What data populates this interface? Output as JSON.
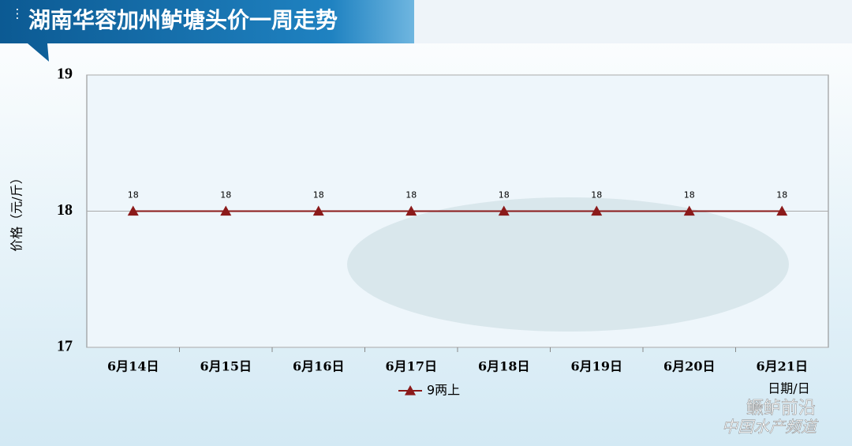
{
  "chart_data": {
    "type": "line",
    "title": "湖南华容加州鲈塘头价一周走势",
    "y_label": "价格（元/斤）",
    "x_label": "日期/日",
    "categories": [
      "6月14日",
      "6月15日",
      "6月16日",
      "6月17日",
      "6月18日",
      "6月19日",
      "6月20日",
      "6月21日"
    ],
    "series": [
      {
        "name": "9两上",
        "color": "#8b1a1a",
        "values": [
          18,
          18,
          18,
          18,
          18,
          18,
          18,
          18
        ]
      }
    ],
    "ylim": [
      17,
      19
    ],
    "yticks": [
      17,
      18,
      19
    ],
    "grid": true,
    "legend": "bottom",
    "data_labels": true
  },
  "watermark": {
    "brand": "鳜鲈前沿",
    "channel": "中国水产频道"
  }
}
